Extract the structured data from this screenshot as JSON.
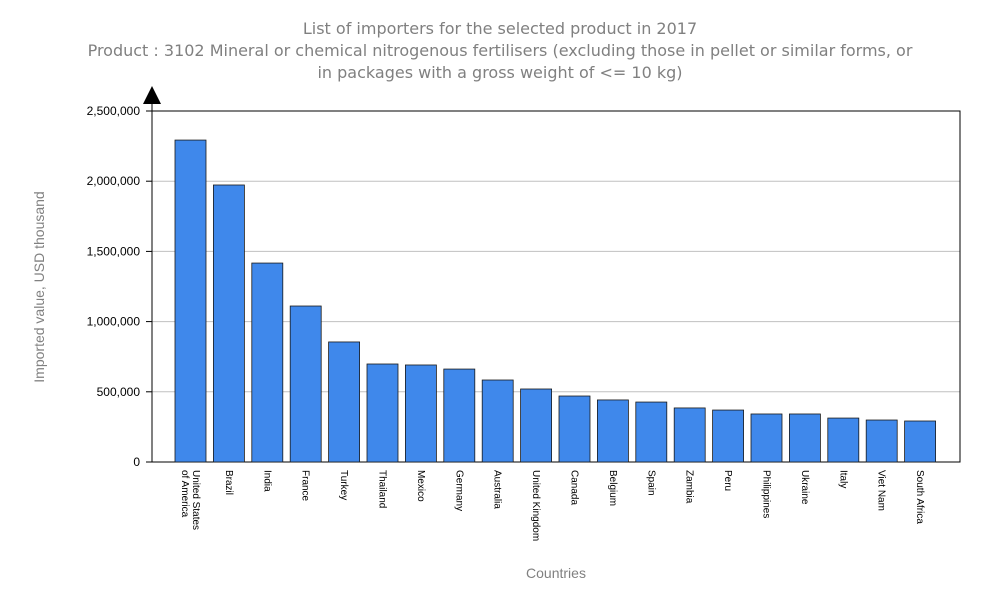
{
  "chart_data": {
    "type": "bar",
    "title": [
      "List of importers for the selected product in 2017",
      "Product : 3102 Mineral or chemical nitrogenous fertilisers (excluding those in pellet or similar forms, or",
      "in packages with a gross weight of <= 10 kg)"
    ],
    "xlabel": "Countries",
    "ylabel": "Imported value, USD thousand",
    "ylim": [
      0,
      2500000
    ],
    "yticks": [
      0,
      500000,
      1000000,
      1500000,
      2000000,
      2500000
    ],
    "ytick_labels": [
      "0",
      "500,000",
      "1,000,000",
      "1,500,000",
      "2,000,000",
      "2,500,000"
    ],
    "grid": true,
    "categories": [
      [
        "United States",
        "of America"
      ],
      [
        "Brazil"
      ],
      [
        "India"
      ],
      [
        "France"
      ],
      [
        "Turkey"
      ],
      [
        "Thailand"
      ],
      [
        "Mexico"
      ],
      [
        "Germany"
      ],
      [
        "Australia"
      ],
      [
        "United Kingdom"
      ],
      [
        "Canada"
      ],
      [
        "Belgium"
      ],
      [
        "Spain"
      ],
      [
        "Zambia"
      ],
      [
        "Peru"
      ],
      [
        "Philippines"
      ],
      [
        "Ukraine"
      ],
      [
        "Italy"
      ],
      [
        "Viet Nam"
      ],
      [
        "South Africa"
      ]
    ],
    "values": [
      2293000,
      1973000,
      1417000,
      1111000,
      855000,
      698000,
      691000,
      662000,
      584000,
      520000,
      470000,
      442000,
      427000,
      385000,
      370000,
      342000,
      342000,
      313000,
      299000,
      292000
    ],
    "colors": {
      "bar": "#3f88eb",
      "bar_edge": "#1a1a1a",
      "grid": "#c0c0c0"
    }
  }
}
